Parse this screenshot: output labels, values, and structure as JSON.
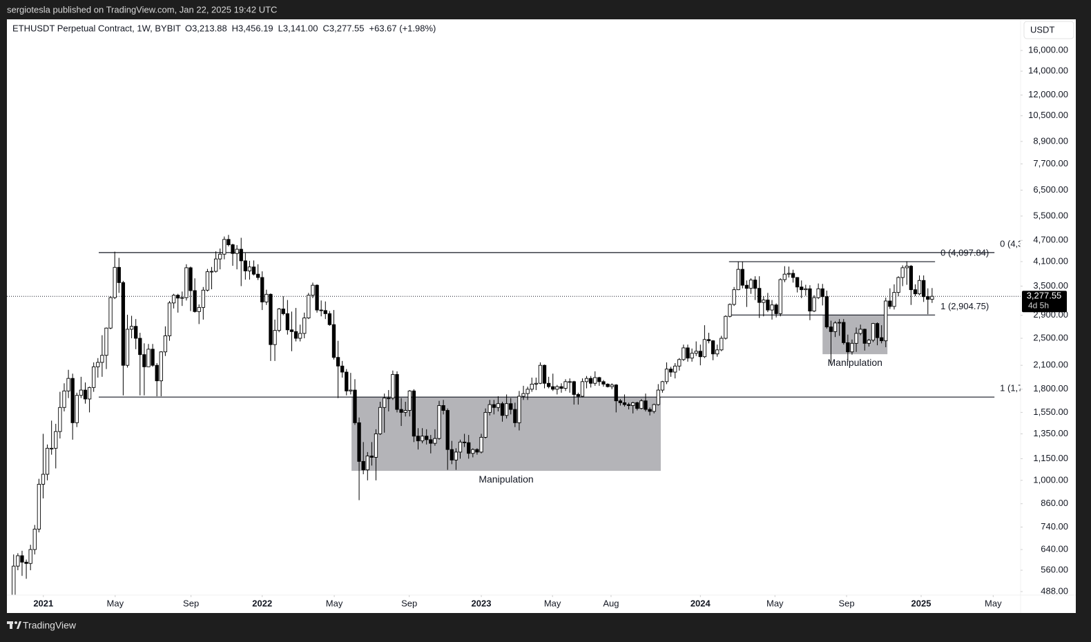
{
  "header": {
    "byline": "sergiotesla published on TradingView.com, Jan 22, 2025 19:42 UTC",
    "footer_brand": "TradingView"
  },
  "chart_data": {
    "type": "candlestick",
    "symbol": "ETHUSDT Perpetual Contract, 1W, BYBIT",
    "ohlc_labels": [
      "O3,213.88",
      "H3,456.19",
      "L3,141.00",
      "C3,277.55",
      "+63.67 (+1.98%)"
    ],
    "currency": "USDT",
    "log_scale": true,
    "up_color": "#ffffff",
    "down_color": "#000000",
    "wick_color": "#000000",
    "ylim": [
      425,
      19560
    ],
    "yticks": [
      {
        "value": 488,
        "label": "488.00"
      },
      {
        "value": 560,
        "label": "560.00"
      },
      {
        "value": 640,
        "label": "640.00"
      },
      {
        "value": 740,
        "label": "740.00"
      },
      {
        "value": 860,
        "label": "860.00"
      },
      {
        "value": 1000,
        "label": "1,000.00"
      },
      {
        "value": 1150,
        "label": "1,150.00"
      },
      {
        "value": 1350,
        "label": "1,350.00"
      },
      {
        "value": 1550,
        "label": "1,550.00"
      },
      {
        "value": 1800,
        "label": "1,800.00"
      },
      {
        "value": 2100,
        "label": "2,100.00"
      },
      {
        "value": 2500,
        "label": "2,500.00"
      },
      {
        "value": 2900,
        "label": "2,900.00"
      },
      {
        "value": 3500,
        "label": "3,500.00"
      },
      {
        "value": 4100,
        "label": "4,100.00"
      },
      {
        "value": 4700,
        "label": "4,700.00"
      },
      {
        "value": 5500,
        "label": "5,500.00"
      },
      {
        "value": 6500,
        "label": "6,500.00"
      },
      {
        "value": 7700,
        "label": "7,700.00"
      },
      {
        "value": 8900,
        "label": "8,900.00"
      },
      {
        "value": 10500,
        "label": "10,500.00"
      },
      {
        "value": 12000,
        "label": "12,000.00"
      },
      {
        "value": 14000,
        "label": "14,000.00"
      },
      {
        "value": 16000,
        "label": "16,000.00"
      }
    ],
    "xlim": [
      -1.6,
      239
    ],
    "xticks": [
      {
        "value": 7.05,
        "label": "2021"
      },
      {
        "value": 24.1,
        "label": "May"
      },
      {
        "value": 42.1,
        "label": "Sep"
      },
      {
        "value": 59,
        "label": "2022"
      },
      {
        "value": 76.1,
        "label": "May"
      },
      {
        "value": 93.9,
        "label": "Sep"
      },
      {
        "value": 111,
        "label": "2023"
      },
      {
        "value": 127.9,
        "label": "May"
      },
      {
        "value": 141.8,
        "label": "Aug"
      },
      {
        "value": 163,
        "label": "2024"
      },
      {
        "value": 180.7,
        "label": "May"
      },
      {
        "value": 197.7,
        "label": "Sep"
      },
      {
        "value": 215.4,
        "label": "2025"
      },
      {
        "value": 232.5,
        "label": "May"
      }
    ],
    "last_price": {
      "value": 3277.55,
      "label": "3,277.55"
    },
    "countdown": "4d 5h",
    "levels": [
      {
        "label": "0 (4,3",
        "value": 4345,
        "from": 20.2,
        "to": 232.8
      },
      {
        "label": "1 (1,7",
        "value": 1711,
        "from": 20.2,
        "to": 232.8
      },
      {
        "label": "0 (4,097.84)",
        "value": 4097.84,
        "from": 169.8,
        "to": 218.7
      },
      {
        "label": "1 (2,904.75)",
        "value": 2904.75,
        "from": 169.8,
        "to": 218.7
      }
    ],
    "boxes": [
      {
        "label": "Manipulation",
        "x0": 80.2,
        "x1": 153.6,
        "low": 1063,
        "high": 1711,
        "color": "#b4b4b8"
      },
      {
        "label": "Manipulation",
        "x0": 192,
        "x1": 207.4,
        "low": 2256,
        "high": 2904.75,
        "color": "#b4b4b8"
      }
    ],
    "candles": [
      [
        460,
        620,
        455,
        575
      ],
      [
        575,
        625,
        560,
        615
      ],
      [
        615,
        635,
        540,
        590
      ],
      [
        590,
        600,
        530,
        585
      ],
      [
        585,
        660,
        560,
        640
      ],
      [
        640,
        750,
        620,
        730
      ],
      [
        730,
        1010,
        715,
        975
      ],
      [
        975,
        1350,
        890,
        1040
      ],
      [
        1040,
        1260,
        1000,
        1230
      ],
      [
        1230,
        1470,
        1180,
        1230
      ],
      [
        1230,
        1440,
        1080,
        1370
      ],
      [
        1370,
        1770,
        1310,
        1600
      ],
      [
        1600,
        1870,
        1560,
        1780
      ],
      [
        1780,
        2040,
        1700,
        1930
      ],
      [
        1930,
        1990,
        1300,
        1450
      ],
      [
        1450,
        1760,
        1410,
        1730
      ],
      [
        1730,
        1950,
        1700,
        1790
      ],
      [
        1790,
        1880,
        1640,
        1690
      ],
      [
        1690,
        1830,
        1550,
        1820
      ],
      [
        1820,
        2140,
        1770,
        2080
      ],
      [
        2080,
        2200,
        1940,
        2140
      ],
      [
        2140,
        2550,
        1950,
        2240
      ],
      [
        2240,
        2680,
        2050,
        2670
      ],
      [
        2670,
        3280,
        2650,
        3250
      ],
      [
        3250,
        4370,
        3220,
        3950
      ],
      [
        3950,
        4200,
        3350,
        3580
      ],
      [
        3580,
        3620,
        1730,
        2100
      ],
      [
        2100,
        2910,
        2070,
        2650
      ],
      [
        2650,
        2890,
        2500,
        2700
      ],
      [
        2700,
        2830,
        2330,
        2500
      ],
      [
        2500,
        2590,
        1730,
        2250
      ],
      [
        2250,
        2420,
        1730,
        2080
      ],
      [
        2080,
        2410,
        2080,
        2330
      ],
      [
        2330,
        2410,
        2080,
        2100
      ],
      [
        2100,
        2130,
        1720,
        1900
      ],
      [
        1900,
        2300,
        1720,
        2290
      ],
      [
        2290,
        2700,
        2230,
        2540
      ],
      [
        2540,
        3180,
        2460,
        3140
      ],
      [
        3140,
        3330,
        3030,
        3300
      ],
      [
        3300,
        3330,
        2950,
        3240
      ],
      [
        3240,
        3380,
        3080,
        3250
      ],
      [
        3250,
        4030,
        3190,
        3940
      ],
      [
        3940,
        3970,
        2980,
        3400
      ],
      [
        3400,
        3680,
        2950,
        2970
      ],
      [
        2970,
        3110,
        2740,
        3050
      ],
      [
        3050,
        3480,
        2820,
        3410
      ],
      [
        3410,
        3910,
        3380,
        3840
      ],
      [
        3840,
        3960,
        3430,
        3850
      ],
      [
        3850,
        4380,
        3820,
        4170
      ],
      [
        4170,
        4460,
        3900,
        4300
      ],
      [
        4300,
        4820,
        4160,
        4730
      ],
      [
        4730,
        4870,
        4520,
        4570
      ],
      [
        4570,
        4600,
        3990,
        4320
      ],
      [
        4320,
        4560,
        3900,
        4440
      ],
      [
        4440,
        4780,
        3500,
        4120
      ],
      [
        4120,
        4330,
        3650,
        3860
      ],
      [
        3860,
        4120,
        3650,
        3960
      ],
      [
        3960,
        4130,
        3750,
        3780
      ],
      [
        3780,
        4030,
        3640,
        3700
      ],
      [
        3700,
        3850,
        3000,
        3160
      ],
      [
        3160,
        3420,
        3100,
        3320
      ],
      [
        3320,
        3340,
        2160,
        2400
      ],
      [
        2400,
        2820,
        2160,
        2630
      ],
      [
        2630,
        3040,
        2600,
        3020
      ],
      [
        3020,
        3280,
        2900,
        2930
      ],
      [
        2930,
        3200,
        2560,
        2640
      ],
      [
        2640,
        2970,
        2300,
        2610
      ],
      [
        2610,
        3040,
        2450,
        2500
      ],
      [
        2500,
        2730,
        2450,
        2580
      ],
      [
        2580,
        2950,
        2500,
        2850
      ],
      [
        2850,
        3350,
        2830,
        3300
      ],
      [
        3300,
        3580,
        3240,
        3520
      ],
      [
        3520,
        3540,
        2950,
        3000
      ],
      [
        3000,
        3190,
        2880,
        2990
      ],
      [
        2990,
        3170,
        2830,
        2930
      ],
      [
        2930,
        2980,
        2710,
        2730
      ],
      [
        2730,
        3000,
        2180,
        2210
      ],
      [
        2210,
        2460,
        1700,
        2090
      ],
      [
        2090,
        2160,
        1940,
        2010
      ],
      [
        2010,
        2050,
        1730,
        1780
      ],
      [
        1780,
        2000,
        1740,
        1790
      ],
      [
        1790,
        1920,
        1430,
        1450
      ],
      [
        1450,
        1500,
        880,
        1130
      ],
      [
        1130,
        1280,
        1040,
        1070
      ],
      [
        1070,
        1200,
        1000,
        1170
      ],
      [
        1170,
        1280,
        1100,
        1160
      ],
      [
        1160,
        1390,
        1000,
        1350
      ],
      [
        1350,
        1660,
        1340,
        1600
      ],
      [
        1600,
        1750,
        1360,
        1700
      ],
      [
        1700,
        1790,
        1560,
        1700
      ],
      [
        1700,
        2030,
        1680,
        1980
      ],
      [
        1980,
        2020,
        1550,
        1580
      ],
      [
        1580,
        1700,
        1420,
        1550
      ],
      [
        1550,
        1660,
        1510,
        1570
      ],
      [
        1570,
        1790,
        1510,
        1780
      ],
      [
        1780,
        1800,
        1280,
        1330
      ],
      [
        1330,
        1400,
        1220,
        1290
      ],
      [
        1290,
        1400,
        1270,
        1330
      ],
      [
        1330,
        1390,
        1260,
        1300
      ],
      [
        1300,
        1340,
        1190,
        1270
      ],
      [
        1270,
        1390,
        1250,
        1310
      ],
      [
        1310,
        1670,
        1300,
        1620
      ],
      [
        1620,
        1680,
        1530,
        1570
      ],
      [
        1570,
        1590,
        1070,
        1220
      ],
      [
        1220,
        1290,
        1110,
        1140
      ],
      [
        1140,
        1230,
        1070,
        1200
      ],
      [
        1200,
        1300,
        1150,
        1280
      ],
      [
        1280,
        1350,
        1240,
        1275
      ],
      [
        1275,
        1340,
        1150,
        1190
      ],
      [
        1190,
        1230,
        1160,
        1220
      ],
      [
        1220,
        1230,
        1180,
        1200
      ],
      [
        1200,
        1350,
        1190,
        1320
      ],
      [
        1320,
        1590,
        1310,
        1550
      ],
      [
        1550,
        1680,
        1520,
        1630
      ],
      [
        1630,
        1680,
        1530,
        1600
      ],
      [
        1600,
        1720,
        1560,
        1640
      ],
      [
        1640,
        1660,
        1460,
        1520
      ],
      [
        1520,
        1740,
        1490,
        1640
      ],
      [
        1640,
        1700,
        1530,
        1580
      ],
      [
        1580,
        1650,
        1410,
        1450
      ],
      [
        1450,
        1780,
        1380,
        1720
      ],
      [
        1720,
        1840,
        1680,
        1750
      ],
      [
        1750,
        1830,
        1680,
        1800
      ],
      [
        1800,
        1940,
        1770,
        1860
      ],
      [
        1860,
        1940,
        1790,
        1870
      ],
      [
        1870,
        2140,
        1860,
        2100
      ],
      [
        2100,
        2110,
        1810,
        1870
      ],
      [
        1870,
        1950,
        1810,
        1830
      ],
      [
        1830,
        1990,
        1780,
        1800
      ],
      [
        1800,
        1850,
        1740,
        1830
      ],
      [
        1830,
        1870,
        1760,
        1810
      ],
      [
        1810,
        1920,
        1780,
        1890
      ],
      [
        1890,
        1930,
        1760,
        1890
      ],
      [
        1890,
        1900,
        1630,
        1740
      ],
      [
        1740,
        1760,
        1630,
        1720
      ],
      [
        1720,
        1930,
        1710,
        1890
      ],
      [
        1890,
        1960,
        1810,
        1930
      ],
      [
        1930,
        1960,
        1820,
        1870
      ],
      [
        1870,
        2020,
        1840,
        1940
      ],
      [
        1940,
        1950,
        1840,
        1890
      ],
      [
        1890,
        1910,
        1830,
        1860
      ],
      [
        1860,
        1870,
        1820,
        1830
      ],
      [
        1830,
        1870,
        1800,
        1850
      ],
      [
        1850,
        1860,
        1550,
        1670
      ],
      [
        1670,
        1690,
        1620,
        1650
      ],
      [
        1650,
        1740,
        1610,
        1630
      ],
      [
        1630,
        1650,
        1580,
        1620
      ],
      [
        1620,
        1660,
        1540,
        1650
      ],
      [
        1650,
        1660,
        1570,
        1590
      ],
      [
        1590,
        1690,
        1580,
        1670
      ],
      [
        1670,
        1750,
        1560,
        1580
      ],
      [
        1580,
        1600,
        1520,
        1560
      ],
      [
        1560,
        1640,
        1540,
        1630
      ],
      [
        1630,
        1860,
        1620,
        1790
      ],
      [
        1790,
        1900,
        1760,
        1890
      ],
      [
        1890,
        2140,
        1860,
        2050
      ],
      [
        2050,
        2080,
        1950,
        2010
      ],
      [
        2010,
        2130,
        1930,
        2090
      ],
      [
        2090,
        2200,
        2030,
        2180
      ],
      [
        2180,
        2400,
        2160,
        2350
      ],
      [
        2350,
        2400,
        2150,
        2200
      ],
      [
        2200,
        2340,
        2150,
        2270
      ],
      [
        2270,
        2450,
        2230,
        2300
      ],
      [
        2300,
        2400,
        2100,
        2220
      ],
      [
        2220,
        2720,
        2200,
        2480
      ],
      [
        2480,
        2590,
        2420,
        2460
      ],
      [
        2460,
        2470,
        2170,
        2260
      ],
      [
        2260,
        2400,
        2220,
        2320
      ],
      [
        2320,
        2540,
        2300,
        2500
      ],
      [
        2500,
        2900,
        2480,
        2880
      ],
      [
        2880,
        3130,
        2860,
        3110
      ],
      [
        3110,
        3480,
        3080,
        3420
      ],
      [
        3420,
        4090,
        3410,
        3900
      ],
      [
        3900,
        4100,
        3450,
        3520
      ],
      [
        3520,
        3630,
        3060,
        3450
      ],
      [
        3450,
        3680,
        3330,
        3640
      ],
      [
        3640,
        3730,
        3200,
        3450
      ],
      [
        3450,
        3730,
        2850,
        3150
      ],
      [
        3150,
        3280,
        2880,
        3200
      ],
      [
        3200,
        3350,
        2960,
        3000
      ],
      [
        3000,
        3200,
        2820,
        3100
      ],
      [
        3100,
        3130,
        2860,
        2930
      ],
      [
        2930,
        3680,
        2880,
        3650
      ],
      [
        3650,
        3980,
        3590,
        3780
      ],
      [
        3780,
        3970,
        3700,
        3800
      ],
      [
        3800,
        3890,
        3580,
        3700
      ],
      [
        3700,
        3710,
        3360,
        3480
      ],
      [
        3480,
        3630,
        3240,
        3420
      ],
      [
        3420,
        3530,
        3290,
        3440
      ],
      [
        3440,
        3520,
        2810,
        2980
      ],
      [
        2980,
        3300,
        2960,
        3250
      ],
      [
        3250,
        3560,
        3220,
        3440
      ],
      [
        3440,
        3550,
        3090,
        3270
      ],
      [
        3270,
        3400,
        2660,
        2690
      ],
      [
        2690,
        2800,
        2110,
        2610
      ],
      [
        2610,
        2790,
        2520,
        2760
      ],
      [
        2760,
        2830,
        2540,
        2770
      ],
      [
        2770,
        2830,
        2400,
        2430
      ],
      [
        2430,
        2560,
        2150,
        2290
      ],
      [
        2290,
        2480,
        2250,
        2420
      ],
      [
        2420,
        2680,
        2290,
        2580
      ],
      [
        2580,
        2730,
        2550,
        2650
      ],
      [
        2650,
        2660,
        2310,
        2420
      ],
      [
        2420,
        2490,
        2370,
        2470
      ],
      [
        2470,
        2760,
        2440,
        2750
      ],
      [
        2750,
        2770,
        2390,
        2510
      ],
      [
        2510,
        2720,
        2420,
        2460
      ],
      [
        2460,
        3250,
        2360,
        3180
      ],
      [
        3180,
        3450,
        3020,
        3070
      ],
      [
        3070,
        3540,
        3010,
        3360
      ],
      [
        3360,
        3730,
        3280,
        3700
      ],
      [
        3700,
        4000,
        3500,
        3940
      ],
      [
        3940,
        4110,
        3530,
        3980
      ],
      [
        3980,
        4010,
        3100,
        3420
      ],
      [
        3420,
        3540,
        3280,
        3330
      ],
      [
        3330,
        3750,
        3300,
        3630
      ],
      [
        3630,
        3750,
        3160,
        3270
      ],
      [
        3270,
        3450,
        2920,
        3214
      ],
      [
        3213.88,
        3456.19,
        3141,
        3277.55
      ]
    ]
  }
}
